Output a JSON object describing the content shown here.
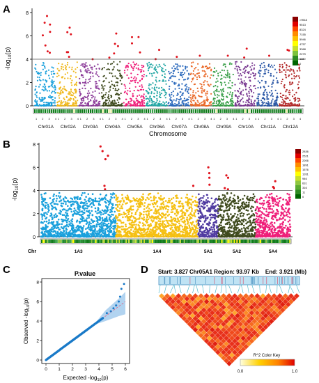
{
  "panels": {
    "a": "A",
    "b": "B",
    "c": "C",
    "d": "D"
  },
  "threshold": 4,
  "chart_data": [
    {
      "type": "scatter",
      "panel": "A",
      "ylabel": "-log10(p)",
      "xlabel": "Chromosome",
      "ylim": [
        0,
        8
      ],
      "yticks": [
        0,
        2,
        4,
        6,
        8
      ],
      "threshold": 4,
      "chromosomes": [
        "Chr01A",
        "Chr02A",
        "Chr03A",
        "Chr04A",
        "Chr05A",
        "Chr06A",
        "Chr07A",
        "Chr08A",
        "Chr09A",
        "Chr10A",
        "Chr11A",
        "Chr12A"
      ],
      "sub_ticks": [
        "1",
        "2",
        "3",
        "4"
      ],
      "colors": [
        "#1aa0dc",
        "#f0b81c",
        "#8d3d9a",
        "#3f4a1e",
        "#ef1f7a",
        "#26a8a6",
        "#2d6bbd",
        "#ea6a2a",
        "#3aa04a",
        "#7a3a92",
        "#2e5aa8",
        "#b32a2a"
      ],
      "significant_max": {
        "Chr01A": 7.7,
        "Chr02A": 6.7,
        "Chr03A": 4.0,
        "Chr04A": 6.2,
        "Chr05A": 5.9,
        "Chr06A": 4.8,
        "Chr07A": 4.2,
        "Chr08A": 4.3,
        "Chr09A": 4.3,
        "Chr10A": 4.9,
        "Chr11A": 4.3,
        "Chr12A": 4.8
      },
      "legend": {
        "title": "",
        "values": [
          "0",
          "1180",
          "2279",
          "3368",
          "4757",
          "5946",
          "7155",
          "8324",
          "9513",
          ">9513"
        ],
        "colors": [
          "#006400",
          "#2e8b22",
          "#7cc23c",
          "#c8e02a",
          "#ffff00",
          "#ffc000",
          "#ff8c00",
          "#ff4500",
          "#e00000",
          "#8b0000"
        ]
      }
    },
    {
      "type": "scatter",
      "panel": "B",
      "ylabel": "-log10(p)",
      "ylim": [
        0,
        8
      ],
      "yticks": [
        0,
        2,
        4,
        6,
        8
      ],
      "threshold": 4,
      "x_label_left": "Chr",
      "segments": [
        "1A3",
        "1A4",
        "5A1",
        "5A2",
        "5A4"
      ],
      "colors": [
        "#1aa0dc",
        "#f5c013",
        "#4f3aa0",
        "#3f4a1e",
        "#ef1f7a"
      ],
      "significant_points": [
        {
          "segment": "1A3",
          "y": 7.8
        },
        {
          "segment": "1A3",
          "y": 7.4
        },
        {
          "segment": "1A3",
          "y": 7.0
        },
        {
          "segment": "1A3",
          "y": 6.7
        },
        {
          "segment": "1A3",
          "y": 4.4
        },
        {
          "segment": "1A3",
          "y": 4.1
        },
        {
          "segment": "1A4",
          "y": 4.4
        },
        {
          "segment": "5A1",
          "y": 6.0
        },
        {
          "segment": "5A1",
          "y": 5.5
        },
        {
          "segment": "5A1",
          "y": 5.1
        },
        {
          "segment": "5A1",
          "y": 4.5
        },
        {
          "segment": "5A2",
          "y": 5.3
        },
        {
          "segment": "5A2",
          "y": 5.1
        },
        {
          "segment": "5A2",
          "y": 4.2
        },
        {
          "segment": "5A2",
          "y": 4.1
        },
        {
          "segment": "5A4",
          "y": 4.8
        },
        {
          "segment": "5A4",
          "y": 4.3
        },
        {
          "segment": "5A4",
          "y": 4.2
        }
      ],
      "legend": {
        "values": [
          "0",
          "11",
          "316",
          "631",
          "946",
          "1261",
          "1576",
          "1891",
          "2206",
          "2521",
          "2836"
        ],
        "colors": [
          "#006400",
          "#2e8b22",
          "#5aab30",
          "#8ec63f",
          "#c8e02a",
          "#ffff00",
          "#ffc000",
          "#ff8c00",
          "#ff4500",
          "#e00000",
          "#8b0000"
        ]
      }
    },
    {
      "type": "scatter",
      "panel": "C",
      "title": "P.value",
      "xlabel": "Expected  -log10(p)",
      "ylabel": "Observed  -log10(p)",
      "xlim": [
        0,
        6
      ],
      "ylim": [
        0,
        8
      ],
      "xticks": [
        0,
        1,
        2,
        3,
        4,
        5,
        6
      ],
      "yticks": [
        0,
        2,
        4,
        6,
        8
      ],
      "points": [
        [
          0.1,
          0.1
        ],
        [
          0.5,
          0.5
        ],
        [
          1,
          1
        ],
        [
          1.5,
          1.5
        ],
        [
          2,
          2
        ],
        [
          2.5,
          2.5
        ],
        [
          3,
          3
        ],
        [
          3.5,
          3.5
        ],
        [
          4,
          4
        ],
        [
          4.3,
          4.3
        ],
        [
          4.6,
          4.8
        ],
        [
          4.9,
          5.0
        ],
        [
          5.1,
          5.3
        ],
        [
          5.3,
          5.6
        ],
        [
          5.5,
          6.0
        ],
        [
          5.6,
          6.5
        ],
        [
          5.7,
          7.3
        ],
        [
          5.9,
          7.8
        ]
      ]
    },
    {
      "type": "heatmap",
      "panel": "D",
      "header": {
        "start": "Start: 3.827",
        "region": "Chr05A1 Region: 93.97 Kb",
        "end": "End: 3.921 (Mb)"
      },
      "color_key": {
        "title": "R^2 Color Key",
        "min": "0.0",
        "max": "1.0",
        "colors": [
          "#ffffe0",
          "#ffd000",
          "#ff8000",
          "#e00000"
        ]
      }
    }
  ]
}
